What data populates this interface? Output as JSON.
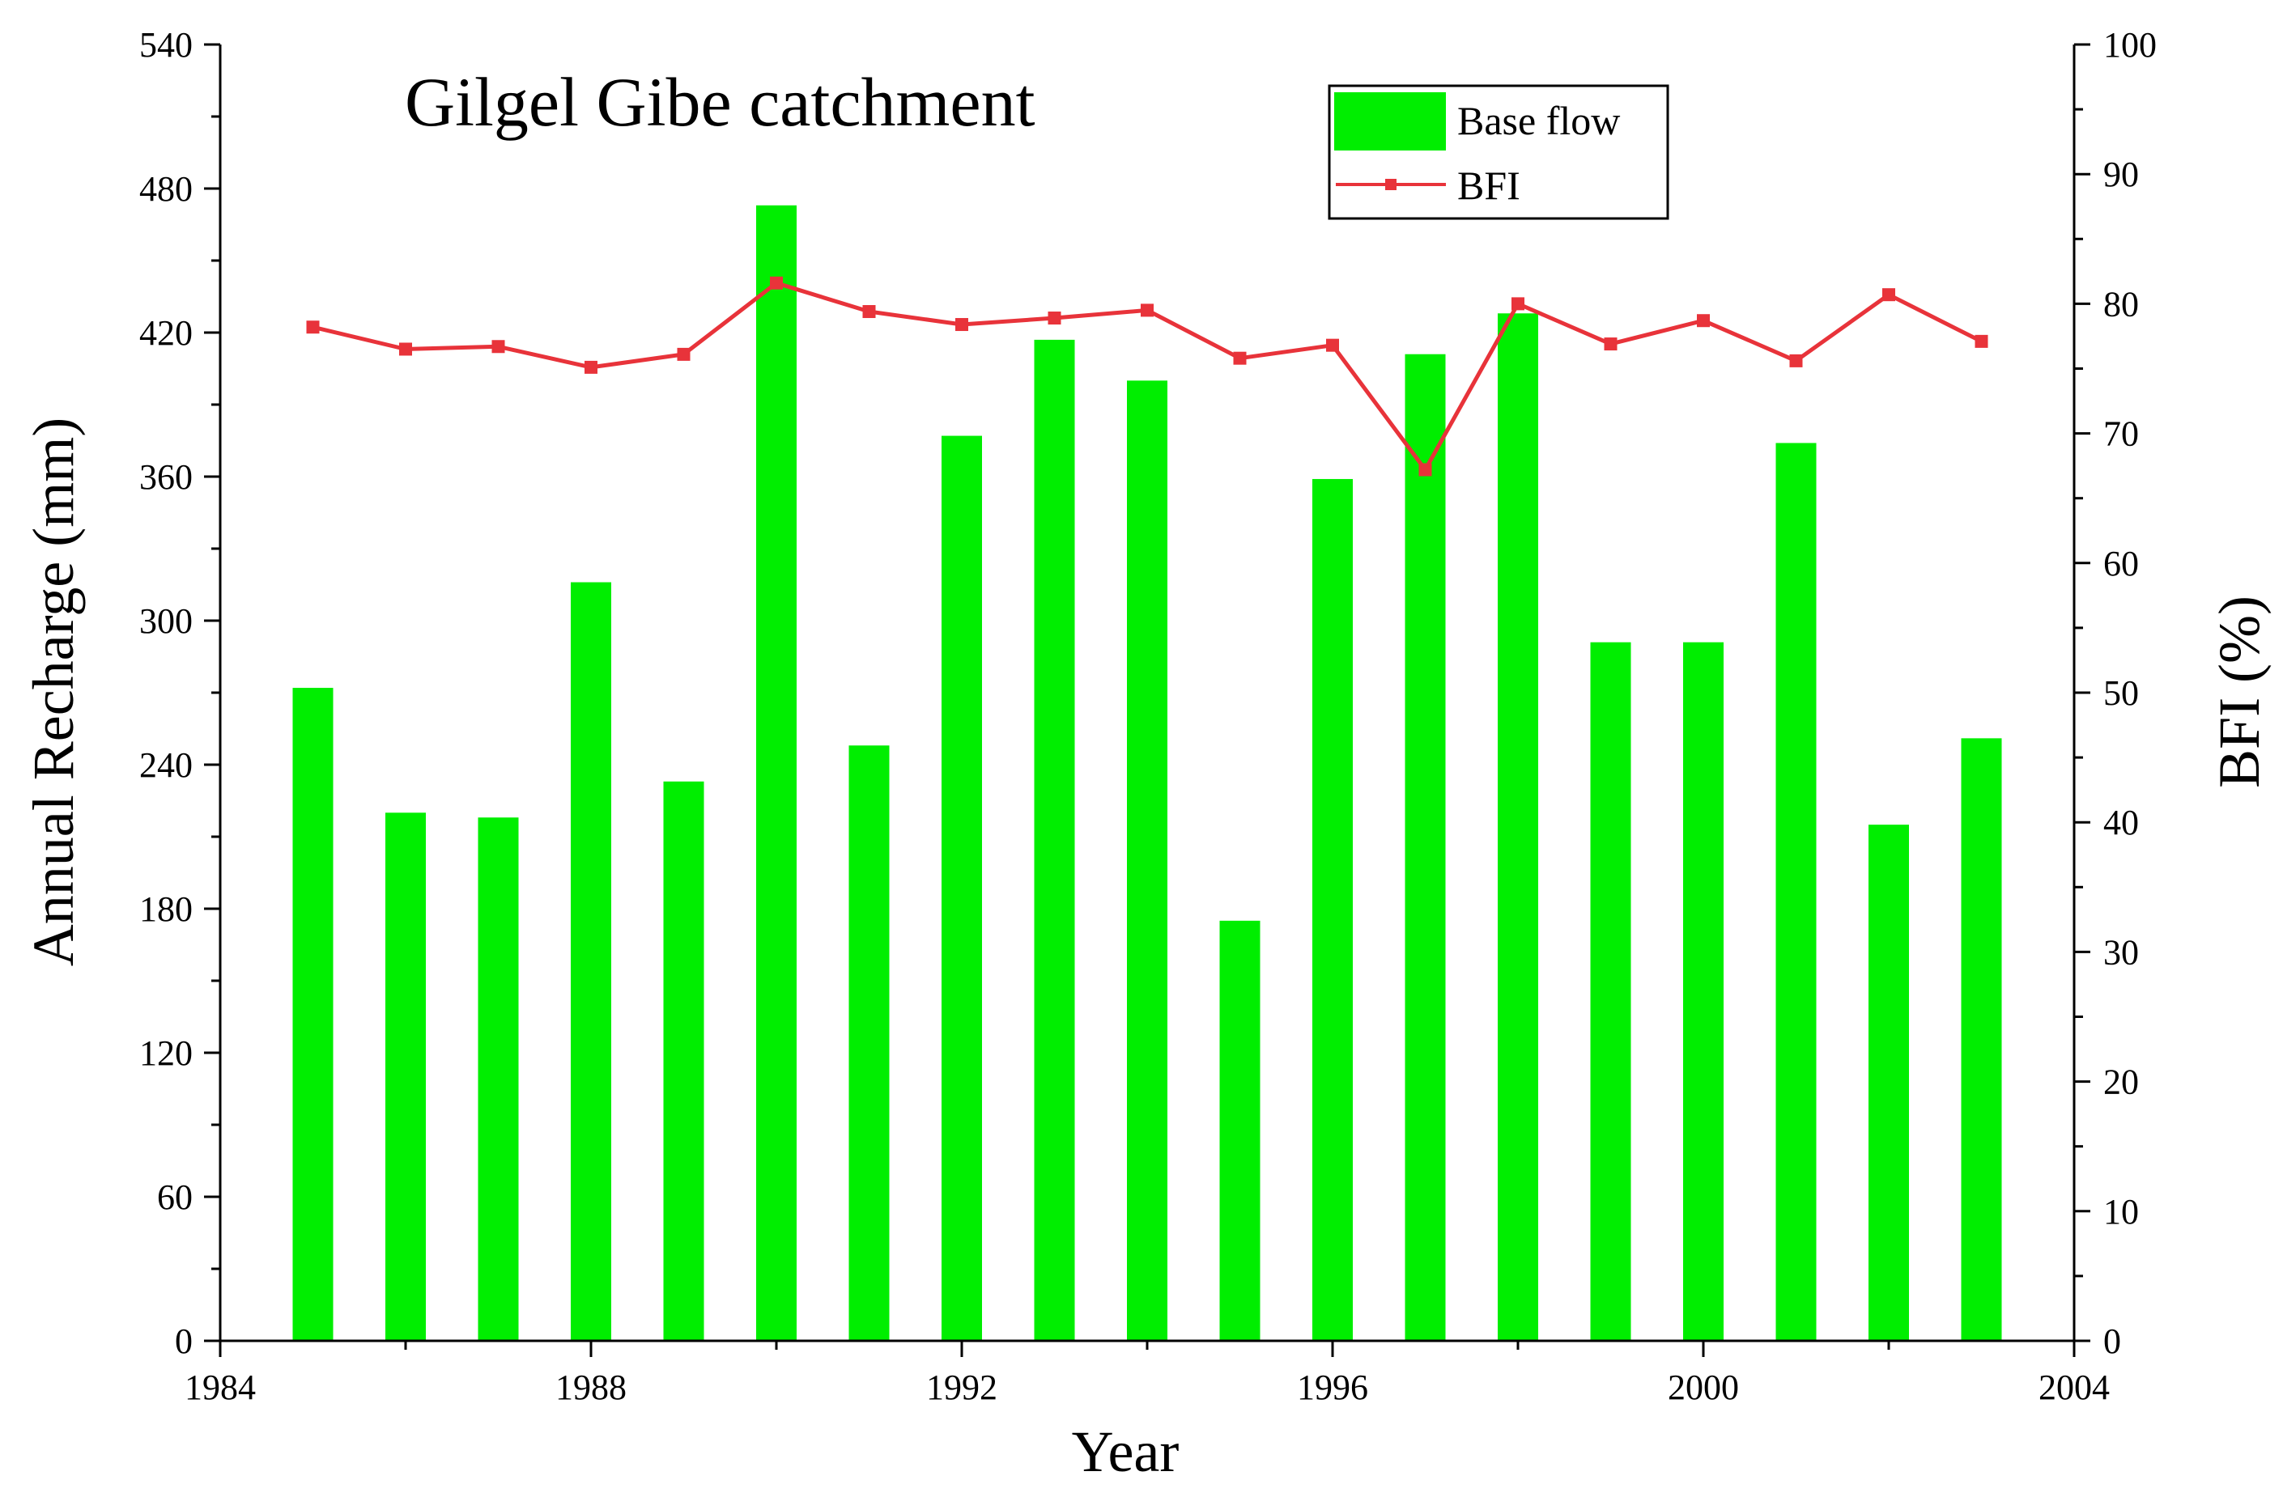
{
  "chart_data": {
    "type": "bar",
    "title": "Gilgel Gibe catchment",
    "xlabel": "Year",
    "ylabel": "Annual Recharge (mm)",
    "y2label": "BFI (%)",
    "xlim": [
      1984,
      2004
    ],
    "ylim": [
      0,
      540
    ],
    "y2lim": [
      0,
      100
    ],
    "xticks": [
      1984,
      1988,
      1992,
      1996,
      2000,
      2004
    ],
    "yticks": [
      0,
      60,
      120,
      180,
      240,
      300,
      360,
      420,
      480,
      540
    ],
    "y2ticks": [
      0,
      10,
      20,
      30,
      40,
      50,
      60,
      70,
      80,
      90,
      100
    ],
    "legend_position": "top-center",
    "grid": false,
    "x": [
      1985,
      1986,
      1987,
      1988,
      1989,
      1990,
      1991,
      1992,
      1993,
      1994,
      1995,
      1996,
      1997,
      1998,
      1999,
      2000,
      2001,
      2002,
      2003
    ],
    "series": [
      {
        "name": "Base flow",
        "type": "bar",
        "axis": "left",
        "color": "#00ee00",
        "values": [
          272,
          220,
          218,
          316,
          233,
          473,
          248,
          377,
          417,
          400,
          175,
          359,
          411,
          428,
          291,
          291,
          374,
          215,
          251
        ]
      },
      {
        "name": "BFI",
        "type": "line",
        "axis": "right",
        "color": "#e8333a",
        "marker": "square",
        "values": [
          78.2,
          76.5,
          76.7,
          75.1,
          76.1,
          81.6,
          79.4,
          78.4,
          78.9,
          79.5,
          75.8,
          76.8,
          67.2,
          80.0,
          76.9,
          78.7,
          75.6,
          80.7,
          77.1
        ]
      }
    ]
  }
}
